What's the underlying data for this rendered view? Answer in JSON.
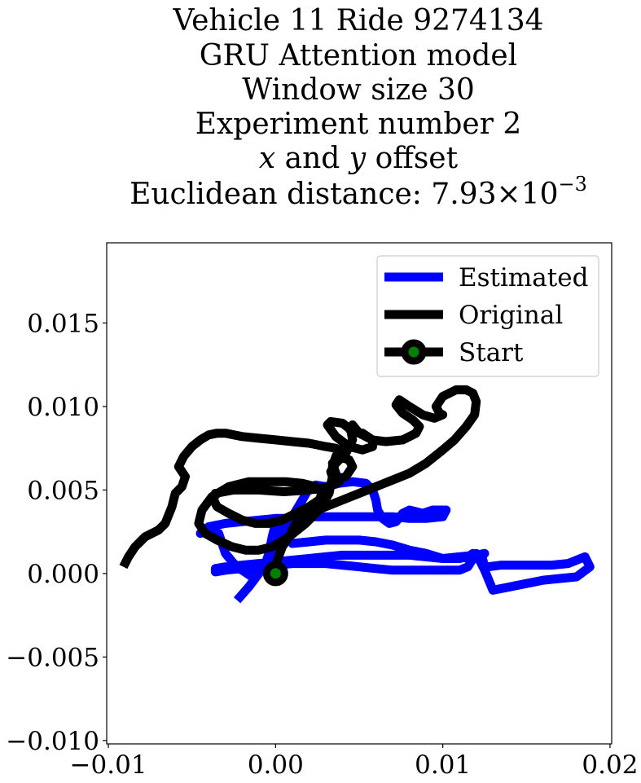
{
  "chart_data": {
    "type": "line",
    "title_lines": [
      "Vehicle 11 Ride 9274134",
      "GRU Attention model",
      "Window size 30",
      "Experiment number 2",
      "x and y offset",
      "Euclidean distance: 7.93 × 10⁻³"
    ],
    "title_parts": {
      "x_and_y": [
        "x",
        " and ",
        "y",
        " offset"
      ],
      "distance_prefix": "Euclidean distance: 7.93",
      "distance_times": "×",
      "distance_base": "10",
      "distance_exponent": "−3"
    },
    "xlabel": "",
    "ylabel": "",
    "xlim": [
      -0.0101,
      0.0201
    ],
    "ylim": [
      -0.0102,
      0.0198
    ],
    "x_ticks": [
      {
        "value": -0.01,
        "label": "−0.01"
      },
      {
        "value": 0.0,
        "label": "0.00"
      },
      {
        "value": 0.01,
        "label": "0.01"
      },
      {
        "value": 0.02,
        "label": "0.02"
      }
    ],
    "y_ticks": [
      {
        "value": -0.01,
        "label": "−0.010"
      },
      {
        "value": -0.005,
        "label": "−0.005"
      },
      {
        "value": 0.0,
        "label": "0.000"
      },
      {
        "value": 0.005,
        "label": "0.005"
      },
      {
        "value": 0.01,
        "label": "0.010"
      },
      {
        "value": 0.015,
        "label": "0.015"
      }
    ],
    "grid": false,
    "legend_position": "top-right",
    "series": [
      {
        "name": "Estimated",
        "color": "#0000ff",
        "x": [
          -0.0023,
          -0.0016,
          -0.001,
          -0.0003,
          0.0003,
          0.001,
          0.0016,
          0.002,
          0.0024,
          0.003,
          0.0038,
          0.0046,
          0.0054,
          0.0058,
          0.006,
          0.0061,
          0.0064,
          0.0068,
          0.0072,
          0.0076,
          0.008,
          0.0084,
          0.0088,
          0.0094,
          0.0102,
          0.01,
          0.009,
          0.008,
          0.007,
          0.006,
          0.005,
          0.004,
          0.003,
          0.002,
          0.001,
          0.0,
          -0.001,
          -0.002,
          -0.003,
          -0.004,
          -0.0045,
          -0.004,
          -0.0034,
          -0.003,
          -0.0025,
          -0.002,
          -0.0014,
          -0.001,
          -0.0006,
          -0.0004,
          -0.0002,
          0.0,
          0.001,
          0.002,
          0.003,
          0.004,
          0.005,
          0.006,
          0.007,
          0.008,
          0.009,
          0.01,
          0.011,
          0.012,
          0.0125,
          0.0122,
          0.0118,
          0.0115,
          0.011,
          0.01,
          0.009,
          0.008,
          0.007,
          0.006,
          0.005,
          0.004,
          0.003,
          0.002,
          0.001,
          0.0,
          -0.001,
          -0.002,
          -0.003,
          -0.0036,
          -0.0036,
          -0.003,
          -0.002,
          -0.001,
          0.0,
          0.001,
          0.002,
          0.003,
          0.004,
          0.005,
          0.006,
          0.007,
          0.008,
          0.009,
          0.01,
          0.011,
          0.0115,
          0.012,
          0.0125,
          0.013,
          0.014,
          0.015,
          0.016,
          0.017,
          0.018,
          0.0188,
          0.0185,
          0.0175,
          0.0165,
          0.0155,
          0.0145,
          0.0135,
          0.0127,
          0.0125,
          0.0123
        ],
        "y": [
          -0.0016,
          -0.0008,
          0.0,
          0.001,
          0.0022,
          0.0034,
          0.0044,
          0.0051,
          0.0053,
          0.0052,
          0.0054,
          0.0055,
          0.0054,
          0.005,
          0.0044,
          0.0038,
          0.0033,
          0.003,
          0.0031,
          0.0036,
          0.0038,
          0.0037,
          0.0036,
          0.0038,
          0.0038,
          0.0034,
          0.0033,
          0.0033,
          0.0034,
          0.0034,
          0.0034,
          0.0034,
          0.0034,
          0.0034,
          0.0033,
          0.0033,
          0.0032,
          0.0031,
          0.003,
          0.0028,
          0.0024,
          0.0026,
          0.0024,
          0.0012,
          0.0006,
          0.0002,
          -0.0002,
          0.0004,
          0.0006,
          0.0012,
          0.0022,
          0.003,
          0.0018,
          0.0019,
          0.002,
          0.002,
          0.002,
          0.0019,
          0.0017,
          0.0014,
          0.0012,
          0.0009,
          0.001,
          0.0011,
          0.0012,
          0.0011,
          0.0012,
          0.001,
          0.0009,
          0.0009,
          0.001,
          0.0011,
          0.0011,
          0.0011,
          0.0011,
          0.0011,
          0.001,
          0.0009,
          0.0008,
          0.0007,
          0.0006,
          0.0005,
          0.0004,
          0.0003,
          0.0001,
          0.0002,
          0.0003,
          0.0004,
          0.0005,
          0.0006,
          0.0006,
          0.0006,
          0.0005,
          0.0004,
          0.0003,
          0.0002,
          0.0002,
          0.0002,
          0.0002,
          0.0002,
          0.0004,
          0.0012,
          0.0002,
          -0.001,
          -0.0008,
          -0.0006,
          -0.0004,
          -0.0003,
          -0.0002,
          0.0004,
          0.001,
          0.0006,
          0.0005,
          0.0005,
          0.0005,
          0.0005,
          0.0004,
          0.0004,
          0.0012
        ]
      },
      {
        "name": "Original",
        "color": "#000000",
        "x": [
          0.0,
          0.0001,
          0.0004,
          0.0008,
          0.0012,
          0.002,
          0.003,
          0.004,
          0.005,
          0.006,
          0.007,
          0.008,
          0.009,
          0.01,
          0.0107,
          0.0114,
          0.0119,
          0.012,
          0.0118,
          0.0114,
          0.0108,
          0.01,
          0.0096,
          0.0098,
          0.01,
          0.0095,
          0.0088,
          0.008,
          0.0074,
          0.0072,
          0.0076,
          0.0082,
          0.0086,
          0.0084,
          0.0076,
          0.0066,
          0.0058,
          0.005,
          0.0046,
          0.0045,
          0.0052,
          0.0058,
          0.0058,
          0.0052,
          0.0044,
          0.0036,
          0.0031,
          0.0033,
          0.004,
          0.0045,
          0.0046,
          0.0042,
          0.0036,
          0.0033,
          0.0034,
          0.0038,
          0.0042,
          0.0046,
          0.0044,
          0.0038,
          0.0034,
          0.0036,
          0.0038,
          0.0032,
          0.002,
          0.0005,
          -0.001,
          -0.0025,
          -0.0036,
          -0.0037,
          -0.0035,
          -0.0028,
          -0.002,
          -0.0012,
          -0.0004,
          0.0004,
          0.0012,
          0.002,
          0.0026,
          0.0028,
          0.0024,
          0.0016,
          0.0006,
          -0.0005,
          -0.0016,
          -0.0028,
          -0.0038,
          -0.0044,
          -0.0046,
          -0.0042,
          -0.0035,
          -0.0026,
          -0.0018,
          -0.001,
          -0.0002,
          0.0008,
          0.0018,
          0.0026,
          0.0032,
          0.0034,
          0.0034,
          0.0036,
          0.0038,
          0.0036,
          0.003,
          0.002,
          0.001,
          0.0,
          -0.001,
          -0.002,
          -0.003,
          -0.0035,
          -0.004,
          -0.0045,
          -0.005,
          -0.0055,
          -0.0058,
          -0.0054,
          -0.0056,
          -0.006,
          -0.0062,
          -0.0064,
          -0.0066,
          -0.007,
          -0.0078,
          -0.0084,
          -0.0088,
          -0.0091
        ],
        "y": [
          0.0,
          0.0008,
          0.0016,
          0.0022,
          0.003,
          0.0036,
          0.004,
          0.0044,
          0.0048,
          0.0052,
          0.0056,
          0.006,
          0.0066,
          0.0074,
          0.008,
          0.0088,
          0.0095,
          0.0103,
          0.0108,
          0.011,
          0.011,
          0.0106,
          0.01,
          0.0096,
          0.0095,
          0.0093,
          0.0095,
          0.01,
          0.0104,
          0.0101,
          0.0096,
          0.0092,
          0.0088,
          0.0084,
          0.008,
          0.0079,
          0.008,
          0.0084,
          0.0089,
          0.0085,
          0.0084,
          0.008,
          0.0076,
          0.0074,
          0.0076,
          0.0082,
          0.0089,
          0.0091,
          0.009,
          0.0086,
          0.008,
          0.0072,
          0.0066,
          0.0061,
          0.0058,
          0.0057,
          0.0058,
          0.0064,
          0.0068,
          0.007,
          0.0066,
          0.006,
          0.0055,
          0.0052,
          0.005,
          0.0049,
          0.005,
          0.005,
          0.0048,
          0.0044,
          0.004,
          0.0036,
          0.0032,
          0.003,
          0.003,
          0.0032,
          0.0036,
          0.004,
          0.0044,
          0.0048,
          0.0052,
          0.0054,
          0.0055,
          0.0055,
          0.0055,
          0.0052,
          0.0046,
          0.0038,
          0.003,
          0.0024,
          0.002,
          0.0016,
          0.0014,
          0.0014,
          0.0016,
          0.0022,
          0.003,
          0.0038,
          0.0048,
          0.0058,
          0.0064,
          0.007,
          0.0074,
          0.0075,
          0.0076,
          0.0078,
          0.0079,
          0.008,
          0.0081,
          0.0082,
          0.0084,
          0.0084,
          0.0083,
          0.008,
          0.0076,
          0.007,
          0.0064,
          0.0058,
          0.0052,
          0.0048,
          0.004,
          0.0035,
          0.003,
          0.0026,
          0.0022,
          0.0016,
          0.001,
          0.0004
        ]
      }
    ],
    "start_point": {
      "name": "Start",
      "x": 0.0,
      "y": 0.0,
      "marker_color": "#008000",
      "edge_color": "#000000"
    },
    "legend": [
      {
        "label": "Estimated",
        "color": "#0000ff",
        "marker": false
      },
      {
        "label": "Original",
        "color": "#000000",
        "marker": false
      },
      {
        "label": "Start",
        "color": "#000000",
        "marker": true,
        "marker_color": "#008000"
      }
    ]
  }
}
